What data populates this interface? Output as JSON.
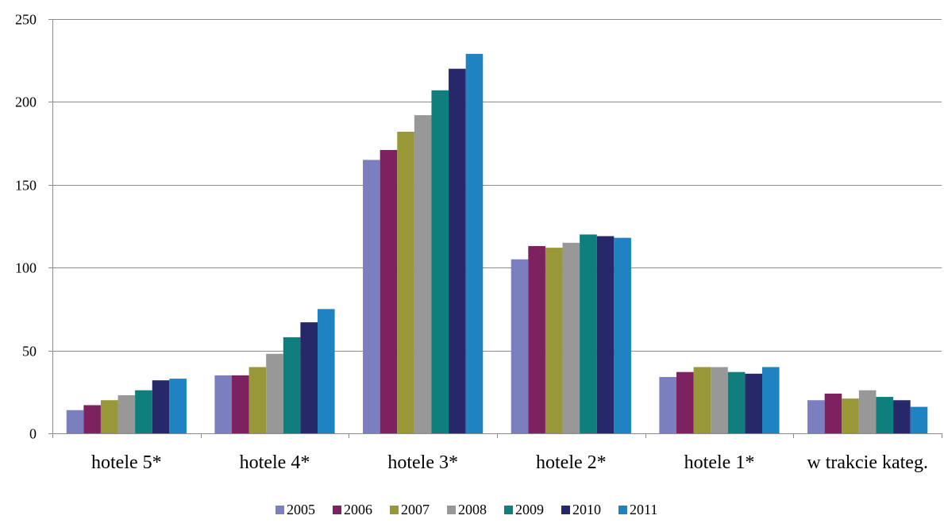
{
  "chart_data": {
    "type": "bar",
    "categories": [
      "hotele 5*",
      "hotele 4*",
      "hotele 3*",
      "hotele 2*",
      "hotele 1*",
      "w trakcie kateg."
    ],
    "series": [
      {
        "name": "2005",
        "color": "#7B7FC0",
        "values": [
          14,
          35,
          165,
          105,
          34,
          20
        ]
      },
      {
        "name": "2006",
        "color": "#7E2160",
        "values": [
          17,
          35,
          171,
          113,
          37,
          24
        ]
      },
      {
        "name": "2007",
        "color": "#989838",
        "values": [
          20,
          40,
          182,
          112,
          40,
          21
        ]
      },
      {
        "name": "2008",
        "color": "#989898",
        "values": [
          23,
          48,
          192,
          115,
          40,
          26
        ]
      },
      {
        "name": "2009",
        "color": "#0E7F7C",
        "values": [
          26,
          58,
          207,
          120,
          37,
          22
        ]
      },
      {
        "name": "2010",
        "color": "#27286A",
        "values": [
          32,
          67,
          220,
          119,
          36,
          20
        ]
      },
      {
        "name": "2011",
        "color": "#1F83C2",
        "values": [
          33,
          75,
          229,
          118,
          40,
          16
        ]
      }
    ],
    "yticks": [
      0,
      50,
      100,
      150,
      200,
      250
    ],
    "ylim": [
      0,
      250
    ],
    "grid": true,
    "legend_position": "bottom",
    "title": "",
    "xlabel": "",
    "ylabel": ""
  }
}
